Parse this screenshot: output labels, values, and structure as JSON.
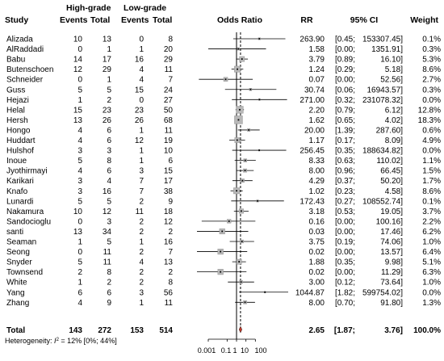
{
  "headers": {
    "study": "Study",
    "high_grade": "High-grade",
    "low_grade": "Low-grade",
    "events": "Events",
    "total": "Total",
    "odds_ratio": "Odds Ratio",
    "rr": "RR",
    "ci": "95% CI",
    "weight": "Weight"
  },
  "studies": [
    {
      "name": "Alizada",
      "he": "10",
      "ht": "13",
      "le": "0",
      "lt": "8",
      "rr": "263.90",
      "ci_lo": "[0.45;",
      "ci_hi": "153307.45]",
      "weight": "0.1%"
    },
    {
      "name": "AlRaddadi",
      "he": "0",
      "ht": "1",
      "le": "1",
      "lt": "20",
      "rr": "1.58",
      "ci_lo": "[0.00;",
      "ci_hi": "1351.91]",
      "weight": "0.3%"
    },
    {
      "name": "Babu",
      "he": "14",
      "ht": "17",
      "le": "16",
      "lt": "29",
      "rr": "3.79",
      "ci_lo": "[0.89;",
      "ci_hi": "16.10]",
      "weight": "5.3%"
    },
    {
      "name": "Butenschoen",
      "he": "12",
      "ht": "29",
      "le": "4",
      "lt": "11",
      "rr": "1.24",
      "ci_lo": "[0.29;",
      "ci_hi": "5.18]",
      "weight": "8.6%"
    },
    {
      "name": "Schneider",
      "he": "0",
      "ht": "1",
      "le": "4",
      "lt": "7",
      "rr": "0.07",
      "ci_lo": "[0.00;",
      "ci_hi": "52.56]",
      "weight": "2.7%"
    },
    {
      "name": "Guss",
      "he": "5",
      "ht": "5",
      "le": "15",
      "lt": "24",
      "rr": "30.74",
      "ci_lo": "[0.06;",
      "ci_hi": "16943.57]",
      "weight": "0.3%"
    },
    {
      "name": "Hejazi",
      "he": "1",
      "ht": "2",
      "le": "0",
      "lt": "27",
      "rr": "271.00",
      "ci_lo": "[0.32;",
      "ci_hi": "231078.32]",
      "weight": "0.0%"
    },
    {
      "name": "Helal",
      "he": "15",
      "ht": "23",
      "le": "23",
      "lt": "50",
      "rr": "2.20",
      "ci_lo": "[0.79;",
      "ci_hi": "6.12]",
      "weight": "12.8%"
    },
    {
      "name": "Hersh",
      "he": "13",
      "ht": "26",
      "le": "26",
      "lt": "68",
      "rr": "1.62",
      "ci_lo": "[0.65;",
      "ci_hi": "4.02]",
      "weight": "18.3%"
    },
    {
      "name": "Hongo",
      "he": "4",
      "ht": "6",
      "le": "1",
      "lt": "11",
      "rr": "20.00",
      "ci_lo": "[1.39;",
      "ci_hi": "287.60]",
      "weight": "0.6%"
    },
    {
      "name": "Huddart",
      "he": "4",
      "ht": "6",
      "le": "12",
      "lt": "19",
      "rr": "1.17",
      "ci_lo": "[0.17;",
      "ci_hi": "8.09]",
      "weight": "4.9%"
    },
    {
      "name": "Hulshof",
      "he": "3",
      "ht": "3",
      "le": "1",
      "lt": "10",
      "rr": "256.45",
      "ci_lo": "[0.35;",
      "ci_hi": "188634.82]",
      "weight": "0.0%"
    },
    {
      "name": "Inoue",
      "he": "5",
      "ht": "8",
      "le": "1",
      "lt": "6",
      "rr": "8.33",
      "ci_lo": "[0.63;",
      "ci_hi": "110.02]",
      "weight": "1.1%"
    },
    {
      "name": "Jyothirmayi",
      "he": "4",
      "ht": "6",
      "le": "3",
      "lt": "15",
      "rr": "8.00",
      "ci_lo": "[0.96;",
      "ci_hi": "66.45]",
      "weight": "1.5%"
    },
    {
      "name": "Karikari",
      "he": "3",
      "ht": "4",
      "le": "7",
      "lt": "17",
      "rr": "4.29",
      "ci_lo": "[0.37;",
      "ci_hi": "50.20]",
      "weight": "1.7%"
    },
    {
      "name": "Knafo",
      "he": "3",
      "ht": "16",
      "le": "7",
      "lt": "38",
      "rr": "1.02",
      "ci_lo": "[0.23;",
      "ci_hi": "4.58]",
      "weight": "8.6%"
    },
    {
      "name": "Lunardi",
      "he": "5",
      "ht": "5",
      "le": "2",
      "lt": "9",
      "rr": "172.43",
      "ci_lo": "[0.27;",
      "ci_hi": "108552.74]",
      "weight": "0.1%"
    },
    {
      "name": "Nakamura",
      "he": "10",
      "ht": "12",
      "le": "11",
      "lt": "18",
      "rr": "3.18",
      "ci_lo": "[0.53;",
      "ci_hi": "19.05]",
      "weight": "3.7%"
    },
    {
      "name": "Sandocioglu",
      "he": "0",
      "ht": "3",
      "le": "2",
      "lt": "12",
      "rr": "0.16",
      "ci_lo": "[0.00;",
      "ci_hi": "100.16]",
      "weight": "2.2%"
    },
    {
      "name": "santi",
      "he": "13",
      "ht": "34",
      "le": "2",
      "lt": "2",
      "rr": "0.03",
      "ci_lo": "[0.00;",
      "ci_hi": "17.46]",
      "weight": "6.2%"
    },
    {
      "name": "Seaman",
      "he": "1",
      "ht": "5",
      "le": "1",
      "lt": "16",
      "rr": "3.75",
      "ci_lo": "[0.19;",
      "ci_hi": "74.06]",
      "weight": "1.0%"
    },
    {
      "name": "Seong",
      "he": "0",
      "ht": "11",
      "le": "2",
      "lt": "7",
      "rr": "0.02",
      "ci_lo": "[0.00;",
      "ci_hi": "13.57]",
      "weight": "6.4%"
    },
    {
      "name": "Snyder",
      "he": "5",
      "ht": "11",
      "le": "4",
      "lt": "13",
      "rr": "1.88",
      "ci_lo": "[0.35;",
      "ci_hi": "9.98]",
      "weight": "5.1%"
    },
    {
      "name": "Townsend",
      "he": "2",
      "ht": "8",
      "le": "2",
      "lt": "2",
      "rr": "0.02",
      "ci_lo": "[0.00;",
      "ci_hi": "11.29]",
      "weight": "6.3%"
    },
    {
      "name": "White",
      "he": "1",
      "ht": "2",
      "le": "2",
      "lt": "8",
      "rr": "3.00",
      "ci_lo": "[0.12;",
      "ci_hi": "73.64]",
      "weight": "1.0%"
    },
    {
      "name": "Yang",
      "he": "6",
      "ht": "6",
      "le": "3",
      "lt": "56",
      "rr": "1044.87",
      "ci_lo": "[1.82;",
      "ci_hi": "599754.02]",
      "weight": "0.0%"
    },
    {
      "name": "Zhang",
      "he": "4",
      "ht": "9",
      "le": "1",
      "lt": "11",
      "rr": "8.00",
      "ci_lo": "[0.70;",
      "ci_hi": "91.80]",
      "weight": "1.3%"
    }
  ],
  "total": {
    "label": "Total",
    "he": "143",
    "ht": "272",
    "le": "153",
    "lt": "514",
    "rr": "2.65",
    "ci_lo": "[1.87;",
    "ci_hi": "3.76]",
    "weight": "100.0%"
  },
  "heterogeneity": {
    "prefix": "Heterogeneity: ",
    "stat": "I",
    "sup": "2",
    "rest": " = 12% [0%; 44%]"
  },
  "chart_data": {
    "type": "forest",
    "scale": "log",
    "xlim": [
      0.001,
      1000
    ],
    "ticks": [
      "0.001",
      "0.1",
      "1",
      "10",
      "100"
    ],
    "tick_values": [
      0.001,
      0.1,
      1,
      10,
      100
    ],
    "null_line": 1,
    "points": [
      {
        "est": 263.9,
        "lo": 0.45,
        "hi": 153307.45,
        "w": 0.1
      },
      {
        "est": 1.58,
        "lo": 0.001,
        "hi": 1351.91,
        "w": 0.3
      },
      {
        "est": 3.79,
        "lo": 0.89,
        "hi": 16.1,
        "w": 5.3
      },
      {
        "est": 1.24,
        "lo": 0.29,
        "hi": 5.18,
        "w": 8.6
      },
      {
        "est": 0.07,
        "lo": 0.0001,
        "hi": 52.56,
        "w": 2.7
      },
      {
        "est": 30.74,
        "lo": 0.06,
        "hi": 16943.57,
        "w": 0.3
      },
      {
        "est": 271.0,
        "lo": 0.32,
        "hi": 231078.32,
        "w": 0.0
      },
      {
        "est": 2.2,
        "lo": 0.79,
        "hi": 6.12,
        "w": 12.8
      },
      {
        "est": 1.62,
        "lo": 0.65,
        "hi": 4.02,
        "w": 18.3
      },
      {
        "est": 20.0,
        "lo": 1.39,
        "hi": 287.6,
        "w": 0.6
      },
      {
        "est": 1.17,
        "lo": 0.17,
        "hi": 8.09,
        "w": 4.9
      },
      {
        "est": 256.45,
        "lo": 0.35,
        "hi": 188634.82,
        "w": 0.0
      },
      {
        "est": 8.33,
        "lo": 0.63,
        "hi": 110.02,
        "w": 1.1
      },
      {
        "est": 8.0,
        "lo": 0.96,
        "hi": 66.45,
        "w": 1.5
      },
      {
        "est": 4.29,
        "lo": 0.37,
        "hi": 50.2,
        "w": 1.7
      },
      {
        "est": 1.02,
        "lo": 0.23,
        "hi": 4.58,
        "w": 8.6
      },
      {
        "est": 172.43,
        "lo": 0.27,
        "hi": 108552.74,
        "w": 0.1
      },
      {
        "est": 3.18,
        "lo": 0.53,
        "hi": 19.05,
        "w": 3.7
      },
      {
        "est": 0.16,
        "lo": 0.0002,
        "hi": 100.16,
        "w": 2.2
      },
      {
        "est": 0.03,
        "lo": 5e-05,
        "hi": 17.46,
        "w": 6.2
      },
      {
        "est": 3.75,
        "lo": 0.19,
        "hi": 74.06,
        "w": 1.0
      },
      {
        "est": 0.02,
        "lo": 3e-05,
        "hi": 13.57,
        "w": 6.4
      },
      {
        "est": 1.88,
        "lo": 0.35,
        "hi": 9.98,
        "w": 5.1
      },
      {
        "est": 0.02,
        "lo": 3e-05,
        "hi": 11.29,
        "w": 6.3
      },
      {
        "est": 3.0,
        "lo": 0.12,
        "hi": 73.64,
        "w": 1.0
      },
      {
        "est": 1044.87,
        "lo": 1.82,
        "hi": 599754.02,
        "w": 0.0
      },
      {
        "est": 8.0,
        "lo": 0.7,
        "hi": 91.8,
        "w": 1.3
      }
    ],
    "pooled": {
      "est": 2.65,
      "lo": 1.87,
      "hi": 3.76
    },
    "colors": {
      "ci_line": "#000000",
      "box": "#b8b8b8",
      "diamond": "#c0392b",
      "null_line": "#000000",
      "pooled_line": "#000000"
    }
  }
}
